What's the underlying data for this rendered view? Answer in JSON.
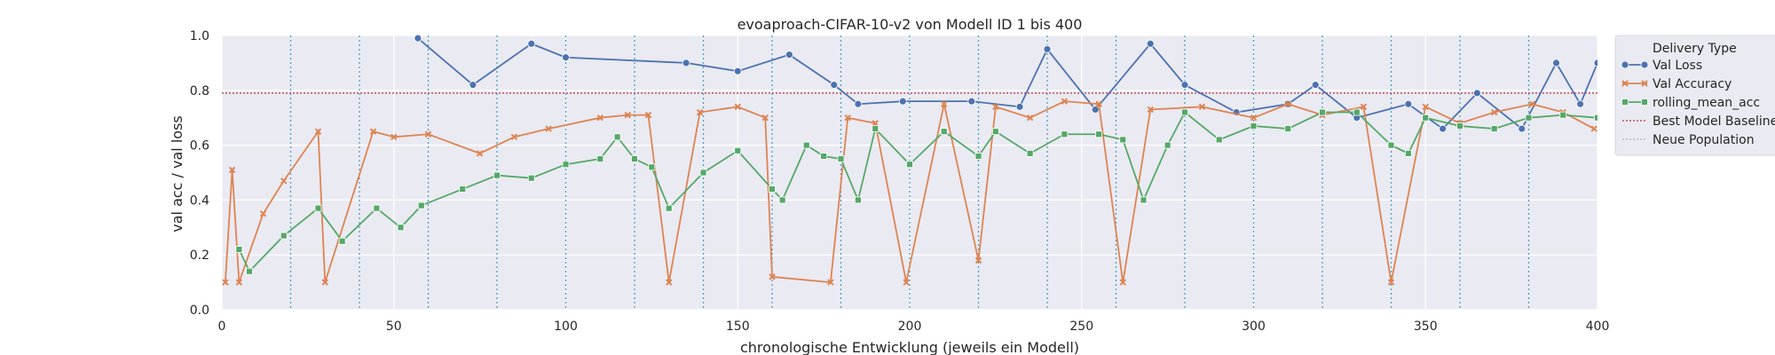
{
  "chart_data": {
    "type": "line",
    "title": "evoaproach-CIFAR-10-v2 von Modell ID 1 bis 400",
    "xlabel": "chronologische Entwicklung (jeweils ein Modell)",
    "ylabel": "val acc / val loss",
    "xlim": [
      0,
      400
    ],
    "ylim": [
      0.0,
      1.0
    ],
    "x_ticks": [
      "0",
      "50",
      "100",
      "150",
      "200",
      "250",
      "300",
      "350",
      "400"
    ],
    "y_ticks": [
      "0.0",
      "0.2",
      "0.4",
      "0.6",
      "0.8",
      "1.0"
    ],
    "grid": true,
    "legend_position": "right, outside",
    "legend_title": "Delivery Type",
    "baseline": {
      "name": "Best Model Baseline",
      "value": 0.79,
      "color": "#c44e52"
    },
    "population_markers": {
      "name": "Neue Population",
      "color": "#4c9fc4",
      "x": [
        20,
        40,
        60,
        80,
        100,
        120,
        140,
        160,
        180,
        200,
        220,
        240,
        260,
        280,
        300,
        320,
        340,
        360,
        380
      ]
    },
    "series": [
      {
        "name": "Val Loss",
        "color": "#4c72b0",
        "marker": "circle",
        "sample_points": [
          [
            57,
            0.99
          ],
          [
            73,
            0.82
          ],
          [
            90,
            0.97
          ],
          [
            100,
            0.92
          ],
          [
            135,
            0.9
          ],
          [
            150,
            0.87
          ],
          [
            165,
            0.93
          ],
          [
            178,
            0.82
          ],
          [
            185,
            0.75
          ],
          [
            198,
            0.76
          ],
          [
            218,
            0.76
          ],
          [
            232,
            0.74
          ],
          [
            240,
            0.95
          ],
          [
            254,
            0.73
          ],
          [
            270,
            0.97
          ],
          [
            280,
            0.82
          ],
          [
            295,
            0.72
          ],
          [
            310,
            0.75
          ],
          [
            318,
            0.82
          ],
          [
            330,
            0.7
          ],
          [
            345,
            0.75
          ],
          [
            355,
            0.66
          ],
          [
            365,
            0.79
          ],
          [
            378,
            0.66
          ],
          [
            388,
            0.9
          ],
          [
            395,
            0.75
          ],
          [
            400,
            0.9
          ]
        ]
      },
      {
        "name": "Val Accuracy",
        "color": "#dd8452",
        "marker": "x",
        "sample_points": [
          [
            1,
            0.1
          ],
          [
            3,
            0.51
          ],
          [
            5,
            0.1
          ],
          [
            12,
            0.35
          ],
          [
            18,
            0.47
          ],
          [
            28,
            0.65
          ],
          [
            30,
            0.1
          ],
          [
            44,
            0.65
          ],
          [
            50,
            0.63
          ],
          [
            60,
            0.64
          ],
          [
            75,
            0.57
          ],
          [
            85,
            0.63
          ],
          [
            95,
            0.66
          ],
          [
            110,
            0.7
          ],
          [
            118,
            0.71
          ],
          [
            124,
            0.71
          ],
          [
            130,
            0.1
          ],
          [
            139,
            0.72
          ],
          [
            150,
            0.74
          ],
          [
            158,
            0.7
          ],
          [
            160,
            0.12
          ],
          [
            177,
            0.1
          ],
          [
            182,
            0.7
          ],
          [
            190,
            0.68
          ],
          [
            199,
            0.1
          ],
          [
            210,
            0.75
          ],
          [
            220,
            0.18
          ],
          [
            225,
            0.74
          ],
          [
            235,
            0.7
          ],
          [
            245,
            0.76
          ],
          [
            255,
            0.75
          ],
          [
            262,
            0.1
          ],
          [
            270,
            0.73
          ],
          [
            285,
            0.74
          ],
          [
            300,
            0.7
          ],
          [
            310,
            0.75
          ],
          [
            320,
            0.71
          ],
          [
            332,
            0.74
          ],
          [
            340,
            0.1
          ],
          [
            350,
            0.74
          ],
          [
            360,
            0.68
          ],
          [
            370,
            0.72
          ],
          [
            381,
            0.75
          ],
          [
            390,
            0.72
          ],
          [
            399,
            0.66
          ]
        ]
      },
      {
        "name": "rolling_mean_acc",
        "color": "#55a868",
        "marker": "square",
        "sample_points": [
          [
            5,
            0.22
          ],
          [
            8,
            0.14
          ],
          [
            18,
            0.27
          ],
          [
            28,
            0.37
          ],
          [
            35,
            0.25
          ],
          [
            45,
            0.37
          ],
          [
            52,
            0.3
          ],
          [
            58,
            0.38
          ],
          [
            70,
            0.44
          ],
          [
            80,
            0.49
          ],
          [
            90,
            0.48
          ],
          [
            100,
            0.53
          ],
          [
            110,
            0.55
          ],
          [
            115,
            0.63
          ],
          [
            120,
            0.55
          ],
          [
            125,
            0.52
          ],
          [
            130,
            0.37
          ],
          [
            140,
            0.5
          ],
          [
            150,
            0.58
          ],
          [
            160,
            0.44
          ],
          [
            163,
            0.4
          ],
          [
            170,
            0.6
          ],
          [
            175,
            0.56
          ],
          [
            180,
            0.55
          ],
          [
            185,
            0.4
          ],
          [
            190,
            0.66
          ],
          [
            200,
            0.53
          ],
          [
            210,
            0.65
          ],
          [
            220,
            0.56
          ],
          [
            225,
            0.65
          ],
          [
            235,
            0.57
          ],
          [
            245,
            0.64
          ],
          [
            255,
            0.64
          ],
          [
            262,
            0.62
          ],
          [
            268,
            0.4
          ],
          [
            275,
            0.6
          ],
          [
            280,
            0.72
          ],
          [
            290,
            0.62
          ],
          [
            300,
            0.67
          ],
          [
            310,
            0.66
          ],
          [
            320,
            0.72
          ],
          [
            330,
            0.72
          ],
          [
            340,
            0.6
          ],
          [
            345,
            0.57
          ],
          [
            350,
            0.7
          ],
          [
            360,
            0.67
          ],
          [
            370,
            0.66
          ],
          [
            380,
            0.7
          ],
          [
            390,
            0.71
          ],
          [
            400,
            0.7
          ]
        ]
      }
    ]
  }
}
